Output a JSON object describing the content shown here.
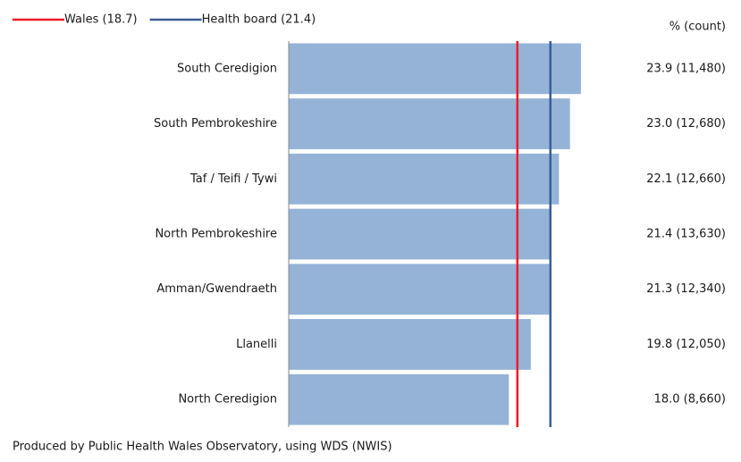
{
  "chart_data": {
    "type": "bar",
    "orientation": "horizontal",
    "categories": [
      "South Ceredigion",
      "South Pembrokeshire",
      "Taf / Teifi / Tywi",
      "North Pembrokeshire",
      "Amman/Gwendraeth",
      "Llanelli",
      "North Ceredigion"
    ],
    "values": [
      23.9,
      23.0,
      22.1,
      21.4,
      21.3,
      19.8,
      18.0
    ],
    "value_labels": [
      "23.9 (11,480)",
      "23.0 (12,680)",
      "22.1 (12,660)",
      "21.4 (13,630)",
      "21.3 (12,340)",
      "19.8 (12,050)",
      "18.0 (8,660)"
    ],
    "value_labels_header": "% (count)",
    "color": "#95b3d7",
    "xlim": [
      0,
      25
    ],
    "reference_lines": [
      {
        "name": "Wales (18.7)",
        "value": 18.7,
        "color": "#ee1c25"
      },
      {
        "name": "Health board (21.4)",
        "value": 21.4,
        "color": "#3a5f94"
      }
    ],
    "footnote": "Produced by Public Health Wales Observatory, using WDS (NWIS)"
  }
}
